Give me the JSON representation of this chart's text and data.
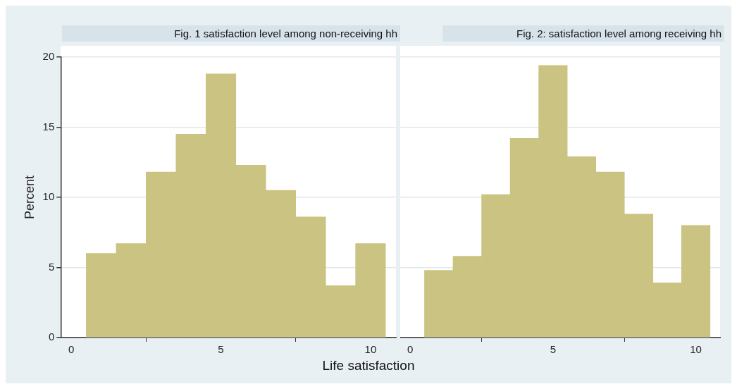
{
  "chart_data": [
    {
      "type": "histogram",
      "title": "Fig. 1 satisfaction level among non-receiving hh",
      "ylabel": "Percent",
      "xlabel": "Life satisfaction",
      "bins": [
        0.5,
        1.5,
        2.5,
        3.5,
        4.5,
        5.5,
        6.5,
        7.5,
        8.5,
        9.5,
        10.5
      ],
      "values": [
        6.0,
        6.7,
        11.8,
        14.5,
        18.8,
        12.3,
        10.5,
        8.6,
        3.7,
        6.7
      ],
      "color": "#cbc382",
      "xlim": [
        -0.35,
        10.85
      ],
      "xticks": [
        0,
        5,
        10
      ],
      "ylim": [
        0,
        20
      ],
      "yticks": [
        0,
        5,
        10,
        15,
        20
      ],
      "grid": "y"
    },
    {
      "type": "histogram",
      "title": "Fig. 2: satisfaction level among receiving hh",
      "bins": [
        0.5,
        1.5,
        2.5,
        3.5,
        4.5,
        5.5,
        6.5,
        7.5,
        8.5,
        9.5,
        10.5
      ],
      "values": [
        4.8,
        5.8,
        10.2,
        14.2,
        19.4,
        12.9,
        11.8,
        8.8,
        3.9,
        8.0
      ],
      "color": "#cbc382",
      "xlim": [
        -0.35,
        10.85
      ],
      "xticks": [
        0,
        5,
        10
      ],
      "ylim": [
        0,
        20
      ],
      "yticks": [
        0,
        5,
        10,
        15,
        20
      ],
      "grid": "y",
      "tick_labels": "x"
    }
  ]
}
